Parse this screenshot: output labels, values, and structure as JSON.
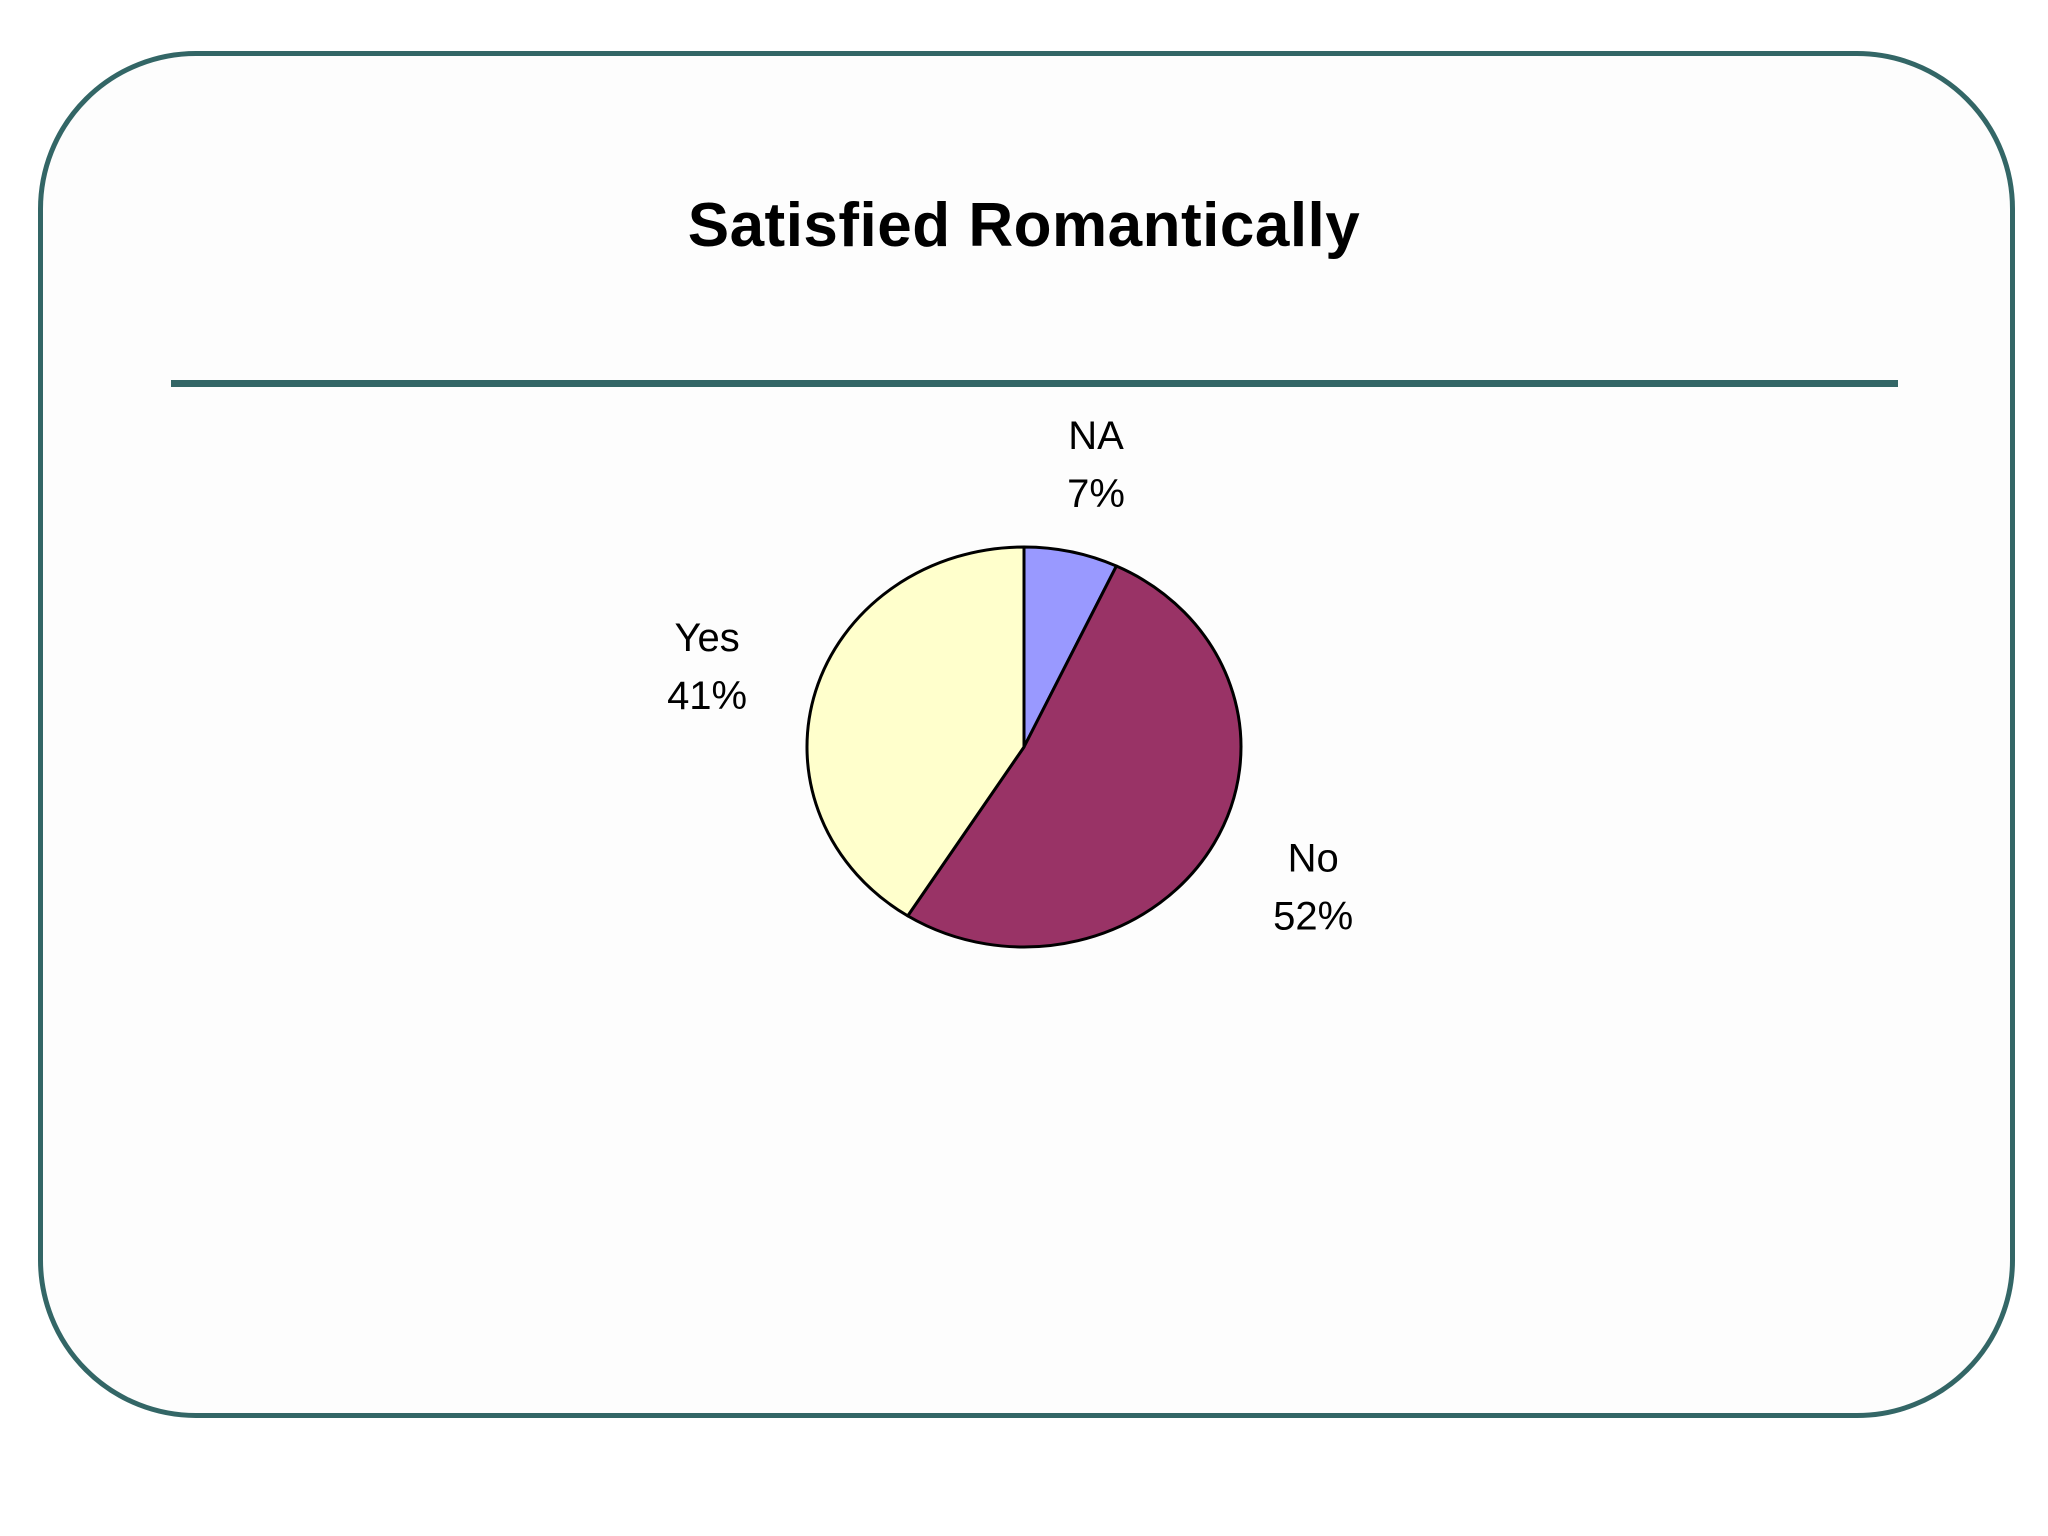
{
  "slide": {
    "title": "Satisfied Romantically",
    "accent_color": "#336666"
  },
  "chart_data": {
    "type": "pie",
    "title": "Satisfied Romantically",
    "categories": [
      "NA",
      "No",
      "Yes"
    ],
    "values": [
      7,
      52,
      41
    ],
    "labels": [
      "NA",
      "No",
      "Yes"
    ],
    "percent_labels": [
      "7%",
      "52%",
      "41%"
    ],
    "colors": [
      "#9999FF",
      "#993366",
      "#FFFFCC"
    ],
    "start_angle_deg": 0,
    "direction": "clockwise",
    "legend": "none",
    "data_labels": "outside"
  }
}
